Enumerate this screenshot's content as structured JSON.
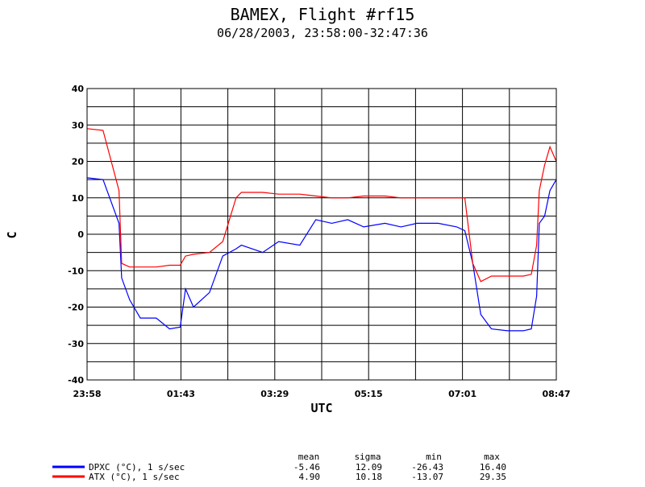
{
  "chart_data": {
    "type": "line",
    "title": "BAMEX, Flight #rf15",
    "subtitle": "06/28/2003, 23:58:00-32:47:36",
    "xlabel": "UTC",
    "ylabel": "C",
    "xlim": [
      "23:58",
      "08:47"
    ],
    "ylim": [
      -40,
      40
    ],
    "x_ticks": [
      "23:58",
      "01:43",
      "03:29",
      "05:15",
      "07:01",
      "08:47"
    ],
    "y_ticks": [
      40,
      30,
      20,
      10,
      0,
      -10,
      -20,
      -30,
      -40
    ],
    "grid": true,
    "x_hours": [
      0,
      0.3,
      0.6,
      0.65,
      0.8,
      1.0,
      1.3,
      1.55,
      1.75,
      1.85,
      2.0,
      2.3,
      2.55,
      2.8,
      2.9,
      3.3,
      3.6,
      4.0,
      4.3,
      4.6,
      4.9,
      5.2,
      5.6,
      5.9,
      6.2,
      6.6,
      6.95,
      7.1,
      7.25,
      7.4,
      7.6,
      7.9,
      8.2,
      8.35,
      8.45,
      8.5,
      8.6,
      8.7,
      8.82
    ],
    "series": [
      {
        "name": "DPXC (°C), 1 s/sec",
        "color": "#0000ff",
        "values": [
          15.5,
          15,
          3,
          -12,
          -18,
          -23,
          -23,
          -26,
          -25.5,
          -15,
          -20,
          -16,
          -6,
          -4,
          -3,
          -5,
          -2,
          -3,
          4,
          3,
          4,
          2,
          3,
          2,
          3,
          3,
          2,
          1,
          -8,
          -22,
          -26,
          -26.5,
          -26.5,
          -26,
          -17,
          3,
          5,
          12,
          15
        ]
      },
      {
        "name": "ATX (°C), 1 s/sec",
        "color": "#ff0000",
        "values": [
          29,
          28.5,
          12,
          -8,
          -9,
          -9,
          -9,
          -8.5,
          -8.5,
          -6,
          -5.5,
          -5,
          -2,
          10,
          11.5,
          11.5,
          11,
          11,
          10.5,
          10,
          10,
          10.5,
          10.5,
          10,
          10,
          10,
          10,
          10,
          -8,
          -13,
          -11.5,
          -11.5,
          -11.5,
          -11,
          -3,
          12,
          19,
          24,
          20
        ]
      }
    ],
    "legend": {
      "placement": "bottom-left",
      "headers": [
        "mean",
        "sigma",
        "min",
        "max"
      ],
      "rows": [
        {
          "name": "DPXC (°C), 1 s/sec",
          "color": "#0000ff",
          "stats": [
            "-5.46",
            "12.09",
            "-26.43",
            "16.40"
          ]
        },
        {
          "name": "ATX (°C), 1 s/sec",
          "color": "#ff0000",
          "stats": [
            "4.90",
            "10.18",
            "-13.07",
            "29.35"
          ]
        }
      ]
    }
  }
}
